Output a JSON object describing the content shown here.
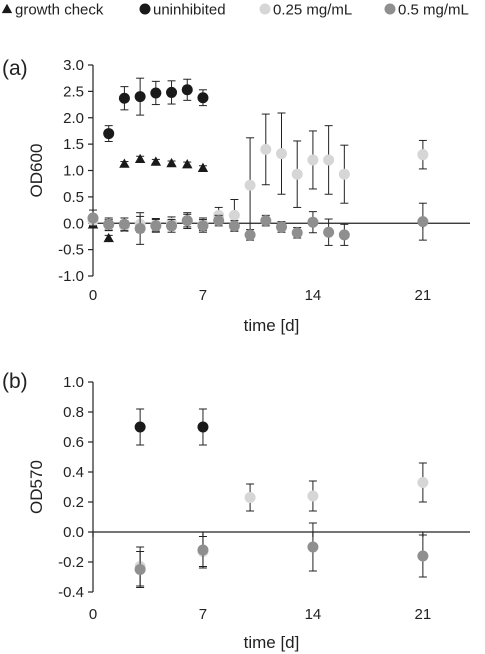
{
  "legend": {
    "placement": "top",
    "items": [
      {
        "marker": "triangle",
        "label": "growth check",
        "color": "#1a1a1a"
      },
      {
        "marker": "circle",
        "label": "uninhibited",
        "color": "#1a1a1a"
      },
      {
        "marker": "circle",
        "label": "0.25 mg/mL",
        "color": "#d6d6d6"
      },
      {
        "marker": "circle",
        "label": "0.5 mg/mL",
        "color": "#8f8f8f"
      }
    ]
  },
  "chart_data": [
    {
      "panel_label": "(a)",
      "type": "scatter",
      "xlabel": "time [d]",
      "ylabel": "OD600",
      "xlim": [
        0,
        24
      ],
      "ylim": [
        -1.0,
        3.0
      ],
      "xticks": [
        0,
        7,
        14,
        21
      ],
      "yticks": [
        -1.0,
        -0.5,
        0.0,
        0.5,
        1.0,
        1.5,
        2.0,
        2.5,
        3.0
      ],
      "ytick_labels": [
        "-1.0",
        "-0.5",
        "0.0",
        "0.5",
        "1.0",
        "1.5",
        "2.0",
        "2.5",
        "3.0"
      ],
      "grid": false,
      "series": [
        {
          "name": "growth check",
          "marker": "triangle",
          "color": "#1a1a1a",
          "points": [
            {
              "x": 0,
              "y": -0.02,
              "err": 0.03
            },
            {
              "x": 1,
              "y": -0.28,
              "err": 0.05
            },
            {
              "x": 2,
              "y": 1.13,
              "err": 0.04
            },
            {
              "x": 3,
              "y": 1.22,
              "err": 0.05
            },
            {
              "x": 4,
              "y": 1.17,
              "err": 0.04
            },
            {
              "x": 5,
              "y": 1.14,
              "err": 0.04
            },
            {
              "x": 6,
              "y": 1.12,
              "err": 0.04
            },
            {
              "x": 7,
              "y": 1.05,
              "err": 0.04
            }
          ]
        },
        {
          "name": "uninhibited",
          "marker": "circle",
          "color": "#1a1a1a",
          "points": [
            {
              "x": 1,
              "y": 1.7,
              "err": 0.15
            },
            {
              "x": 2,
              "y": 2.37,
              "err": 0.22
            },
            {
              "x": 3,
              "y": 2.4,
              "err": 0.35
            },
            {
              "x": 4,
              "y": 2.47,
              "err": 0.22
            },
            {
              "x": 5,
              "y": 2.48,
              "err": 0.22
            },
            {
              "x": 6,
              "y": 2.53,
              "err": 0.2
            },
            {
              "x": 7,
              "y": 2.38,
              "err": 0.15
            }
          ]
        },
        {
          "name": "0.25 mg/mL",
          "marker": "circle",
          "color": "#d6d6d6",
          "points": [
            {
              "x": 0,
              "y": 0.05,
              "err": 0.1
            },
            {
              "x": 1,
              "y": -0.03,
              "err": 0.1
            },
            {
              "x": 2,
              "y": -0.05,
              "err": 0.1
            },
            {
              "x": 3,
              "y": -0.02,
              "err": 0.15
            },
            {
              "x": 4,
              "y": -0.03,
              "err": 0.12
            },
            {
              "x": 5,
              "y": 0.0,
              "err": 0.12
            },
            {
              "x": 6,
              "y": 0.05,
              "err": 0.15
            },
            {
              "x": 7,
              "y": -0.02,
              "err": 0.12
            },
            {
              "x": 8,
              "y": 0.15,
              "err": 0.15
            },
            {
              "x": 9,
              "y": 0.15,
              "err": 0.3
            },
            {
              "x": 10,
              "y": 0.72,
              "err": 0.9
            },
            {
              "x": 11,
              "y": 1.4,
              "err": 0.67
            },
            {
              "x": 12,
              "y": 1.32,
              "err": 0.77
            },
            {
              "x": 13,
              "y": 0.93,
              "err": 0.63
            },
            {
              "x": 14,
              "y": 1.2,
              "err": 0.55
            },
            {
              "x": 15,
              "y": 1.2,
              "err": 0.65
            },
            {
              "x": 16,
              "y": 0.93,
              "err": 0.55
            },
            {
              "x": 21,
              "y": 1.3,
              "err": 0.27
            }
          ]
        },
        {
          "name": "0.5 mg/mL",
          "marker": "circle",
          "color": "#8f8f8f",
          "points": [
            {
              "x": 0,
              "y": 0.1,
              "err": 0.15
            },
            {
              "x": 1,
              "y": -0.02,
              "err": 0.12
            },
            {
              "x": 2,
              "y": -0.02,
              "err": 0.12
            },
            {
              "x": 3,
              "y": -0.1,
              "err": 0.3
            },
            {
              "x": 4,
              "y": -0.05,
              "err": 0.12
            },
            {
              "x": 5,
              "y": -0.05,
              "err": 0.12
            },
            {
              "x": 6,
              "y": 0.05,
              "err": 0.12
            },
            {
              "x": 7,
              "y": -0.05,
              "err": 0.12
            },
            {
              "x": 8,
              "y": 0.05,
              "err": 0.1
            },
            {
              "x": 9,
              "y": -0.05,
              "err": 0.1
            },
            {
              "x": 10,
              "y": -0.22,
              "err": 0.1
            },
            {
              "x": 11,
              "y": 0.05,
              "err": 0.1
            },
            {
              "x": 12,
              "y": -0.07,
              "err": 0.1
            },
            {
              "x": 13,
              "y": -0.18,
              "err": 0.1
            },
            {
              "x": 14,
              "y": 0.02,
              "err": 0.2
            },
            {
              "x": 15,
              "y": -0.17,
              "err": 0.25
            },
            {
              "x": 16,
              "y": -0.22,
              "err": 0.2
            },
            {
              "x": 21,
              "y": 0.03,
              "err": 0.35
            }
          ]
        }
      ]
    },
    {
      "panel_label": "(b)",
      "type": "scatter",
      "xlabel": "time [d]",
      "ylabel": "OD570",
      "xlim": [
        0,
        24
      ],
      "ylim": [
        -0.4,
        1.0
      ],
      "xticks": [
        0,
        7,
        14,
        21
      ],
      "yticks": [
        -0.4,
        -0.2,
        0.0,
        0.2,
        0.4,
        0.6,
        0.8,
        1.0
      ],
      "ytick_labels": [
        "-0.4",
        "-0.2",
        "0.0",
        "0.2",
        "0.4",
        "0.6",
        "0.8",
        "1.0"
      ],
      "grid": false,
      "series": [
        {
          "name": "uninhibited",
          "marker": "circle",
          "color": "#1a1a1a",
          "points": [
            {
              "x": 3,
              "y": 0.7,
              "err": 0.12
            },
            {
              "x": 7,
              "y": 0.7,
              "err": 0.12
            }
          ]
        },
        {
          "name": "0.25 mg/mL",
          "marker": "circle",
          "color": "#d6d6d6",
          "points": [
            {
              "x": 3,
              "y": -0.23,
              "err": 0.13
            },
            {
              "x": 7,
              "y": -0.13,
              "err": 0.1
            },
            {
              "x": 10,
              "y": 0.23,
              "err": 0.09
            },
            {
              "x": 14,
              "y": 0.24,
              "err": 0.1
            },
            {
              "x": 21,
              "y": 0.33,
              "err": 0.13
            }
          ]
        },
        {
          "name": "0.5 mg/mL",
          "marker": "circle",
          "color": "#8f8f8f",
          "points": [
            {
              "x": 3,
              "y": -0.25,
              "err": 0.12
            },
            {
              "x": 7,
              "y": -0.12,
              "err": 0.12
            },
            {
              "x": 14,
              "y": -0.1,
              "err": 0.16
            },
            {
              "x": 21,
              "y": -0.16,
              "err": 0.14
            }
          ]
        }
      ]
    }
  ]
}
